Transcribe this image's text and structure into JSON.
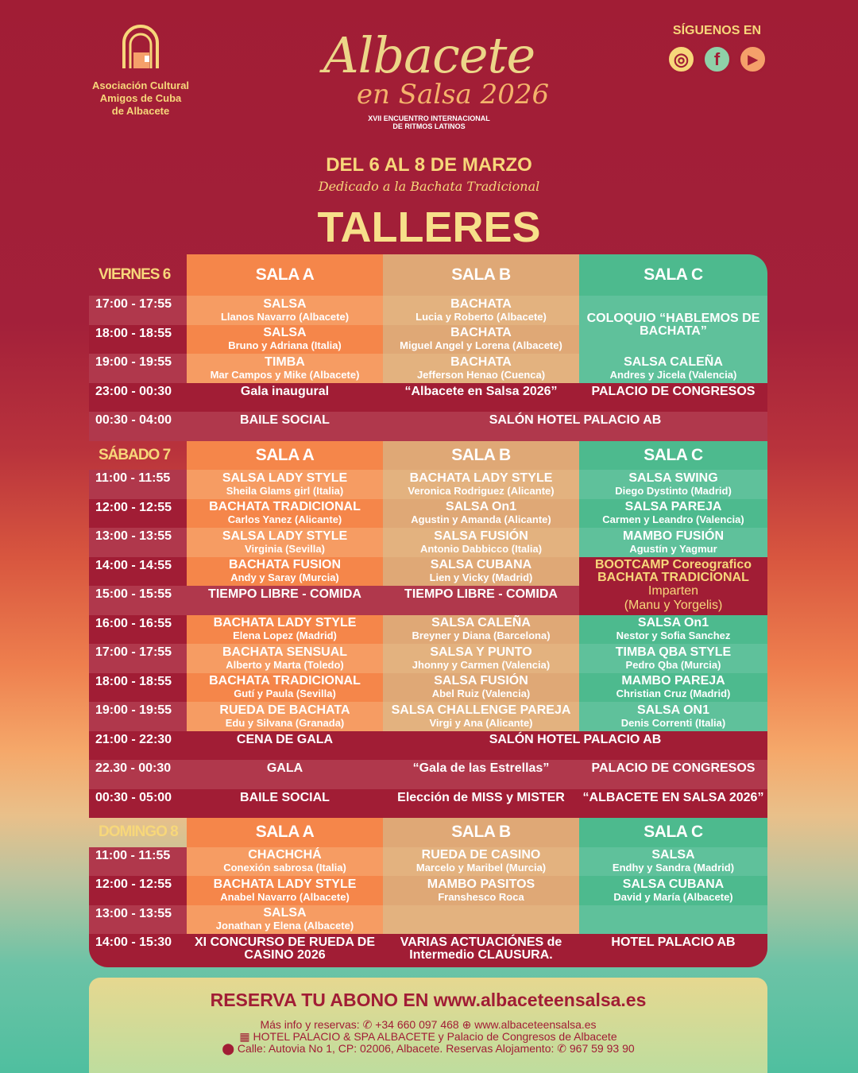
{
  "header": {
    "org_lines": [
      "Asociación Cultural",
      "Amigos de Cuba",
      "de Albacete"
    ],
    "title_main": "Albacete",
    "title_sub": "en Salsa 2026",
    "edition": "XVII ENCUENTRO INTERNACIONAL",
    "edition2": "DE RITMOS LATINOS",
    "dates": "DEL 6 AL 8 DE MARZO",
    "dedication": "Dedicado a la Bachata Tradicional",
    "section_title": "TALLERES",
    "follow_label": "SÍGUENOS EN",
    "social_icons": [
      "instagram-icon",
      "facebook-icon",
      "youtube-icon"
    ],
    "social_glyphs": [
      "◎",
      "f",
      "▶"
    ]
  },
  "colors": {
    "crimson": "#a11d35",
    "sala_a": "#f5864a",
    "sala_b": "#dfa876",
    "sala_c": "#4dba8e",
    "highlight_text": "#f7d77a"
  },
  "days": [
    {
      "label": "VIERNES 6",
      "header": [
        "SALA A",
        "SALA B",
        "SALA C"
      ],
      "rows": [
        {
          "time": "17:00 - 17:55",
          "cells": [
            {
              "k": "a",
              "t": "SALSA",
              "s": "Llanos Navarro (Albacete)"
            },
            {
              "k": "b",
              "t": "BACHATA",
              "s": "Lucia y Roberto (Albacete)"
            },
            {
              "k": "c",
              "t": "COLOQUIO “HABLEMOS DE BACHATA”",
              "rs": 2
            }
          ]
        },
        {
          "time": "18:00 - 18:55",
          "cells": [
            {
              "k": "a",
              "t": "SALSA",
              "s": "Bruno y Adriana  (Italia)"
            },
            {
              "k": "b",
              "t": "BACHATA",
              "s": "Miguel Angel y Lorena (Albacete)"
            }
          ]
        },
        {
          "time": "19:00 - 19:55",
          "cells": [
            {
              "k": "a",
              "t": "TIMBA",
              "s": "Mar Campos y Mike (Albacete)"
            },
            {
              "k": "b",
              "t": "BACHATA",
              "s": "Jefferson Henao (Cuenca)"
            },
            {
              "k": "c",
              "t": "SALSA CALEÑA",
              "s": "Andres y Jicela (Valencia)"
            }
          ]
        },
        {
          "time": "23:00 - 00:30",
          "ev": true,
          "cells": [
            {
              "t": "Gala inaugural"
            },
            {
              "t": "“Albacete en Salsa 2026”"
            },
            {
              "t": "PALACIO DE CONGRESOS"
            }
          ]
        },
        {
          "time": "00:30 - 04:00",
          "ev": true,
          "cells": [
            {
              "t": "BAILE SOCIAL"
            },
            {
              "t": "SALÓN HOTEL PALACIO AB",
              "cs": 2
            }
          ]
        }
      ]
    },
    {
      "label": "SÁBADO 7",
      "header": [
        "SALA A",
        "SALA B",
        "SALA C"
      ],
      "rows": [
        {
          "time": "11:00 - 11:55",
          "cells": [
            {
              "k": "a",
              "t": "SALSA LADY STYLE",
              "s": "Sheila Glams girl (Italia)"
            },
            {
              "k": "b",
              "t": "BACHATA LADY STYLE",
              "s": "Veronica Rodriguez (Alicante)"
            },
            {
              "k": "c",
              "t": "SALSA SWING",
              "s": "Diego Dystinto (Madrid)"
            }
          ]
        },
        {
          "time": "12:00 - 12:55",
          "cells": [
            {
              "k": "a",
              "t": "BACHATA TRADICIONAL",
              "s": "Carlos Yanez (Alicante)"
            },
            {
              "k": "b",
              "t": "SALSA On1",
              "s": "Agustin y Amanda (Alicante)"
            },
            {
              "k": "c",
              "t": "SALSA PAREJA",
              "s": "Carmen y Leandro (Valencia)"
            }
          ]
        },
        {
          "time": "13:00 - 13:55",
          "cells": [
            {
              "k": "a",
              "t": "SALSA LADY STYLE",
              "s": "Virginia (Sevilla)"
            },
            {
              "k": "b",
              "t": "SALSA FUSIÓN",
              "s": "Antonio Dabbicco (Italia)"
            },
            {
              "k": "c",
              "t": "MAMBO FUSIÓN",
              "s": "Agustín y Yagmur"
            }
          ]
        },
        {
          "time": "14:00 - 14:55",
          "cells": [
            {
              "k": "a",
              "t": "BACHATA FUSION",
              "s": "Andy y Saray (Murcia)"
            },
            {
              "k": "b",
              "t": "SALSA CUBANA",
              "s": "Lien y Vicky (Madrid)"
            },
            {
              "k": "hl",
              "t": "BOOTCAMP Coreografico",
              "t2": "BACHATA TRADICIONAL",
              "s": "Imparten",
              "s2": "(Manu y Yorgelis)",
              "rs": 2
            }
          ]
        },
        {
          "time": "15:00 - 15:55",
          "ev": true,
          "cells": [
            {
              "t": "TIEMPO LIBRE - COMIDA"
            },
            {
              "t": "TIEMPO LIBRE - COMIDA"
            }
          ]
        },
        {
          "time": "16:00 - 16:55",
          "cells": [
            {
              "k": "a",
              "t": "BACHATA LADY STYLE",
              "s": "Elena Lopez (Madrid)"
            },
            {
              "k": "b",
              "t": "SALSA CALEÑA",
              "s": "Breyner y Diana (Barcelona)"
            },
            {
              "k": "c",
              "t": "SALSA On1",
              "s": "Nestor y Sofia Sanchez"
            }
          ]
        },
        {
          "time": "17:00 - 17:55",
          "cells": [
            {
              "k": "a",
              "t": "BACHATA SENSUAL",
              "s": "Alberto y Marta (Toledo)"
            },
            {
              "k": "b",
              "t": "SALSA Y PUNTO",
              "s": "Jhonny y Carmen (Valencia)"
            },
            {
              "k": "c",
              "t": "TIMBA QBA STYLE",
              "s": "Pedro Qba (Murcia)"
            }
          ]
        },
        {
          "time": "18:00 - 18:55",
          "cells": [
            {
              "k": "a",
              "t": "BACHATA TRADICIONAL",
              "s": "Gutí y Paula (Sevilla)"
            },
            {
              "k": "b",
              "t": "SALSA FUSIÓN",
              "s": "Abel Ruiz (Valencia)"
            },
            {
              "k": "c",
              "t": "MAMBO PAREJA",
              "s": "Christian Cruz (Madrid)"
            }
          ]
        },
        {
          "time": "19:00 - 19:55",
          "cells": [
            {
              "k": "a",
              "t": "RUEDA DE BACHATA",
              "s": "Edu y Silvana (Granada)"
            },
            {
              "k": "b",
              "t": "SALSA CHALLENGE PAREJA",
              "s": "Virgi y Ana (Alicante)"
            },
            {
              "k": "c",
              "t": "SALSA ON1",
              "s": "Denis Correnti (Italia)"
            }
          ]
        },
        {
          "time": "21:00 - 22:30",
          "ev": true,
          "cells": [
            {
              "t": "CENA DE GALA"
            },
            {
              "t": "SALÓN HOTEL PALACIO AB",
              "cs": 2
            }
          ]
        },
        {
          "time": "22.30 - 00:30",
          "ev": true,
          "cells": [
            {
              "t": "GALA"
            },
            {
              "t": "“Gala de las Estrellas”"
            },
            {
              "t": "PALACIO DE CONGRESOS"
            }
          ]
        },
        {
          "time": "00:30 - 05:00",
          "ev": true,
          "cells": [
            {
              "t": "BAILE SOCIAL"
            },
            {
              "t": "Elección de MISS y MISTER"
            },
            {
              "t": "“ALBACETE EN SALSA 2026”"
            }
          ]
        }
      ]
    },
    {
      "label": "DOMINGO 8",
      "header": [
        "SALA A",
        "SALA B",
        "SALA C"
      ],
      "rows": [
        {
          "time": "11:00 - 11:55",
          "cells": [
            {
              "k": "a",
              "t": "CHACHCHÁ",
              "s": "Conexión sabrosa (Italia)"
            },
            {
              "k": "b",
              "t": "RUEDA DE CASINO",
              "s": "Marcelo y Maribel (Murcia)"
            },
            {
              "k": "c",
              "t": "SALSA",
              "s": "Endhy y Sandra (Madrid)"
            }
          ]
        },
        {
          "time": "12:00 - 12:55",
          "cells": [
            {
              "k": "a",
              "t": "BACHATA LADY STYLE",
              "s": "Anabel Navarro (Albacete)"
            },
            {
              "k": "b",
              "t": "MAMBO PASITOS",
              "s": "Franshesco Roca"
            },
            {
              "k": "c",
              "t": "SALSA CUBANA",
              "s": "David y María (Albacete)"
            }
          ]
        },
        {
          "time": "13:00 - 13:55",
          "cells": [
            {
              "k": "a",
              "t": "SALSA",
              "s": "Jonathan y Elena (Albacete)"
            },
            {
              "k": "b"
            },
            {
              "k": "c"
            }
          ]
        },
        {
          "time": "14:00 - 15:30",
          "ev": true,
          "tall": true,
          "cells": [
            {
              "t": "XI CONCURSO DE RUEDA DE CASINO 2026"
            },
            {
              "t": "VARIAS ACTUACIÓNES de Intermedio CLAUSURA."
            },
            {
              "t": "HOTEL PALACIO AB"
            }
          ]
        }
      ]
    }
  ],
  "footer": {
    "cta": "RESERVA TU ABONO EN www.albaceteensalsa.es",
    "info_label": "Más info y reservas:",
    "phone": "+34 660 097 468",
    "web": "www.albaceteensalsa.es",
    "venue": "HOTEL PALACIO & SPA ALBACETE y Palacio de Congresos de Albacete",
    "address": "Calle: Autovia No 1, CP: 02006, Albacete. Reservas Alojamento:",
    "lodging_phone": "967 59 93 90"
  }
}
